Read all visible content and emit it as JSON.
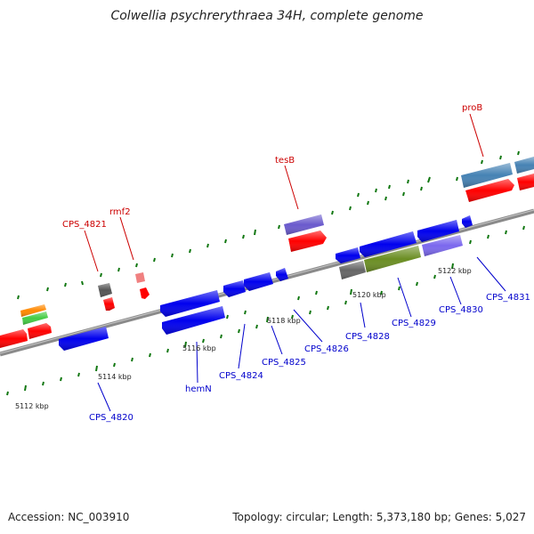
{
  "title": "Colwellia psychrerythraea 34H, complete genome",
  "footer": {
    "accession": "Accession: NC_003910",
    "summary": "Topology: circular; Length: 5,373,180 bp; Genes: 5,027"
  },
  "kbp_labels": [
    "5112 kbp",
    "5114 kbp",
    "5116 kbp",
    "5118 kbp",
    "5120 kbp",
    "5122 kbp"
  ],
  "gene_labels_top": [
    "CPS_4821",
    "rmf2",
    "tesB",
    "proB"
  ],
  "gene_labels_bottom": [
    "CPS_4820",
    "hemN",
    "CPS_4824",
    "CPS_4825",
    "CPS_4826",
    "CPS_4828",
    "CPS_4829",
    "CPS_4830",
    "CPS_4831"
  ],
  "colors": {
    "forward_gene": "#ff0000",
    "reverse_gene": "#0000ee",
    "backbone": "#8a8a8a",
    "tick": "#117711",
    "label_top": "#cc0000",
    "label_bottom": "#0000cc"
  }
}
